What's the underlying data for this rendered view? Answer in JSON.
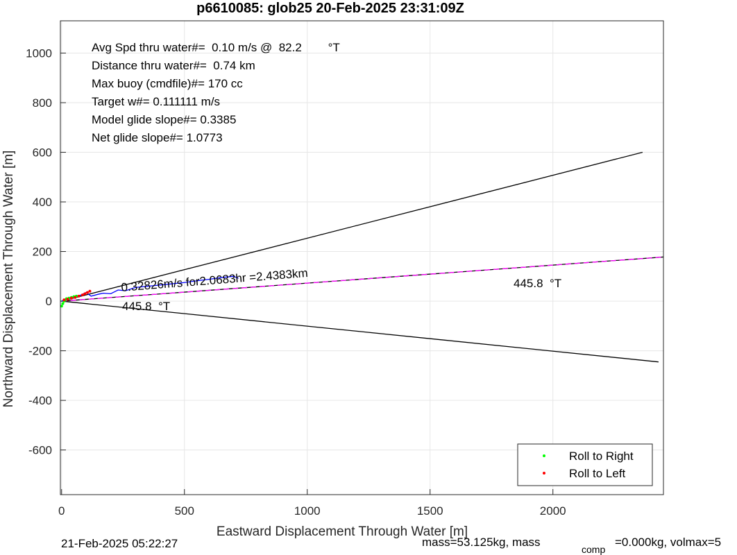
{
  "chart_data": {
    "type": "line",
    "title": "p6610085: glob25 20-Feb-2025 23:31:09Z",
    "x_label": "Eastward Displacement Through Water [m]",
    "y_label": "Northward Displacement Through Water [m]",
    "xlim": [
      -5,
      2450
    ],
    "ylim": [
      -780,
      1130
    ],
    "xticks": [
      0,
      500,
      1000,
      1500,
      2000
    ],
    "yticks": [
      -600,
      -400,
      -200,
      0,
      200,
      400,
      600,
      800,
      1000
    ],
    "grid": true,
    "legend": "lower right",
    "annotations": [
      "Avg Spd thru water#=  0.10 m/s @  82.2        °T",
      "Distance thru water#=  0.74 km",
      "Max buoy (cmdfile)#= 170 cc",
      "Target w#= 0.111111 m/s",
      "Model glide slope#= 0.3385",
      "Net glide slope#= 1.0773",
      "0.32826m/s for2.0683hr =2.4383km",
      "445.8  °T",
      "445.8  °T"
    ],
    "footer": [
      "21-Feb-2025 05:22:27",
      "mass=53.125kg, mass",
      "comp",
      "=0.000kg, volmax=5"
    ],
    "series": [
      {
        "color": "#000000",
        "x": [
          0,
          2365
        ],
        "values": [
          0,
          600
        ]
      },
      {
        "color": "#000000",
        "x": [
          0,
          2430
        ],
        "values": [
          0,
          -245
        ]
      },
      {
        "color": "#000000",
        "x": [
          0,
          2450
        ],
        "values": [
          0,
          178
        ]
      },
      {
        "color": "#ff00ff",
        "dashed": true,
        "x": [
          0,
          2450
        ],
        "values": [
          0,
          178
        ]
      },
      {
        "color": "#0000ff",
        "x": [
          0,
          20,
          40,
          60,
          80,
          100,
          120,
          150,
          170,
          200,
          230,
          260,
          300,
          350,
          400,
          450,
          500,
          550,
          600,
          650,
          700,
          720
        ],
        "values": [
          0,
          10,
          15,
          20,
          25,
          35,
          20,
          28,
          32,
          30,
          45,
          42,
          55,
          60,
          65,
          70,
          75,
          82,
          88,
          95,
          100,
          92
        ]
      },
      {
        "name": "Roll to Right",
        "color": "#00ff00",
        "markers": true,
        "x": [
          0,
          5,
          10,
          15,
          20,
          30,
          40,
          50,
          60
        ],
        "values": [
          -20,
          -10,
          0,
          5,
          10,
          12,
          15,
          18,
          20
        ]
      },
      {
        "name": "Roll to Left",
        "color": "#ff0000",
        "markers": true,
        "x": [
          10,
          25,
          40,
          55,
          70,
          85,
          95,
          105,
          115
        ],
        "values": [
          5,
          8,
          12,
          15,
          20,
          25,
          30,
          35,
          40
        ]
      }
    ]
  }
}
